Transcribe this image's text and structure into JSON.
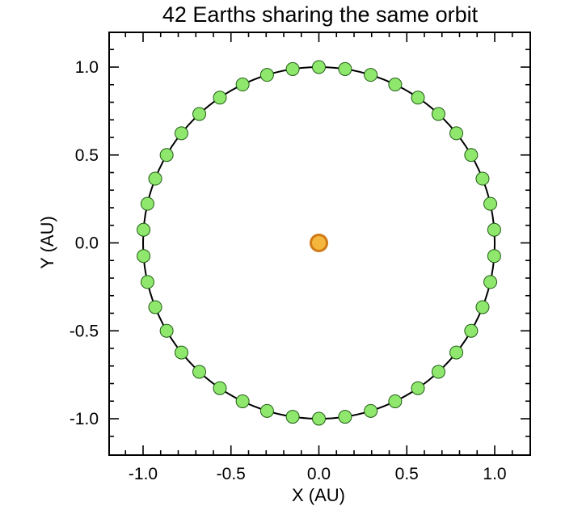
{
  "chart_data": {
    "type": "scatter",
    "title": "42 Earths sharing the same orbit",
    "xlabel": "X (AU)",
    "ylabel": "Y (AU)",
    "xlim": [
      -1.2,
      1.2
    ],
    "ylim": [
      -1.2,
      1.2
    ],
    "xticks": [
      "-1.0",
      "-0.5",
      "0.0",
      "0.5",
      "1.0"
    ],
    "yticks": [
      "1.0",
      "0.5",
      "0.0",
      "-0.5",
      "-1.0"
    ],
    "grid": false,
    "orbit": {
      "shape": "circle",
      "center": [
        0,
        0
      ],
      "radius": 1.0,
      "color": "#000000"
    },
    "sun": {
      "x": 0.0,
      "y": 0.0,
      "fill": "#f4b63c",
      "stroke": "#d07a16"
    },
    "earths": {
      "count": 42,
      "radius_au": 1.0,
      "start_angle_deg": 90,
      "fill": "#8fe86d",
      "stroke": "#1f5c12"
    }
  }
}
